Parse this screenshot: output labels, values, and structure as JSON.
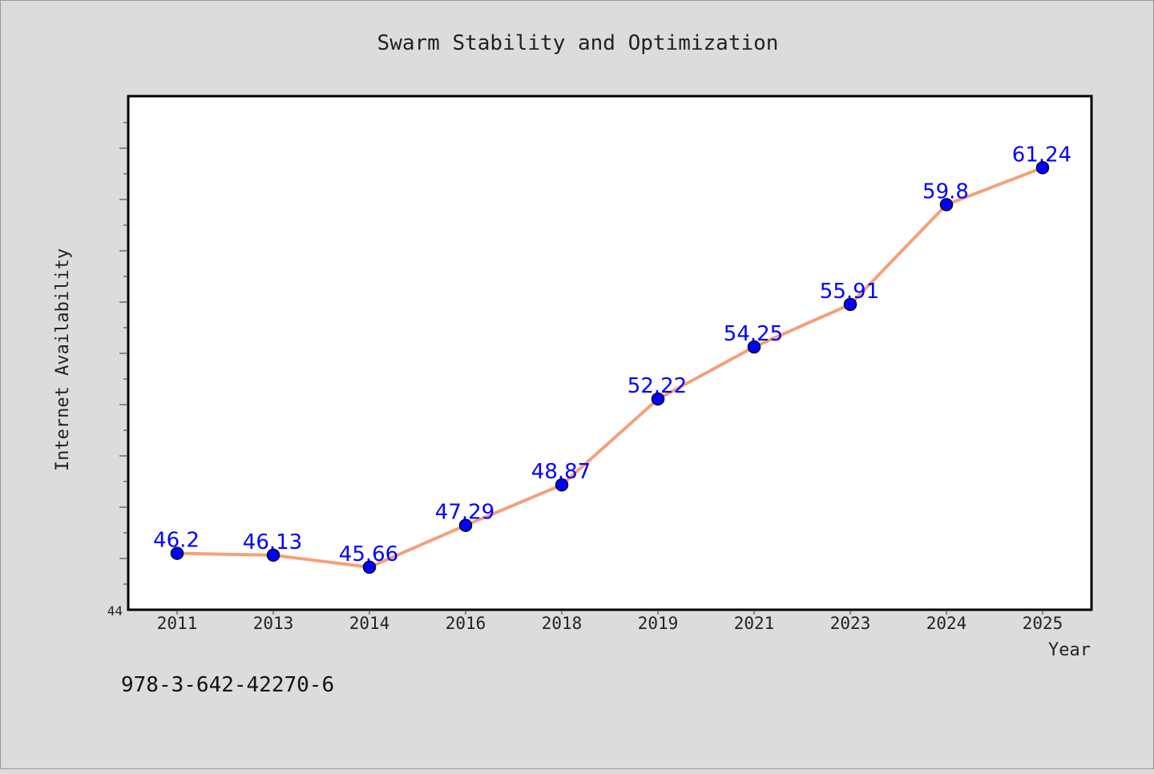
{
  "chart_data": {
    "type": "line",
    "title": "Swarm Stability and Optimization",
    "xlabel": "Year",
    "ylabel": "Internet Availability",
    "categories": [
      "2011",
      "2013",
      "2014",
      "2016",
      "2018",
      "2019",
      "2021",
      "2023",
      "2024",
      "2025"
    ],
    "series": [
      {
        "values": [
          46.2,
          46.13,
          45.66,
          47.29,
          48.87,
          52.22,
          54.25,
          55.91,
          59.8,
          61.24
        ],
        "labels": [
          "46.2",
          "46.13",
          "45.66",
          "47.29",
          "48.87",
          "52.22",
          "54.25",
          "55.91",
          "59.8",
          "61.24"
        ]
      }
    ],
    "ylim": [
      44,
      64
    ],
    "y_tick_labels": [
      "44"
    ],
    "grid": false,
    "legend": "none",
    "colors": {
      "line": "#f4a07a",
      "marker": "#0000ff",
      "data_label": "#0000ff",
      "plot_bg": "#ffffff",
      "page_bg": "#dcdcdc"
    }
  },
  "footnote": "978-3-642-42270-6"
}
